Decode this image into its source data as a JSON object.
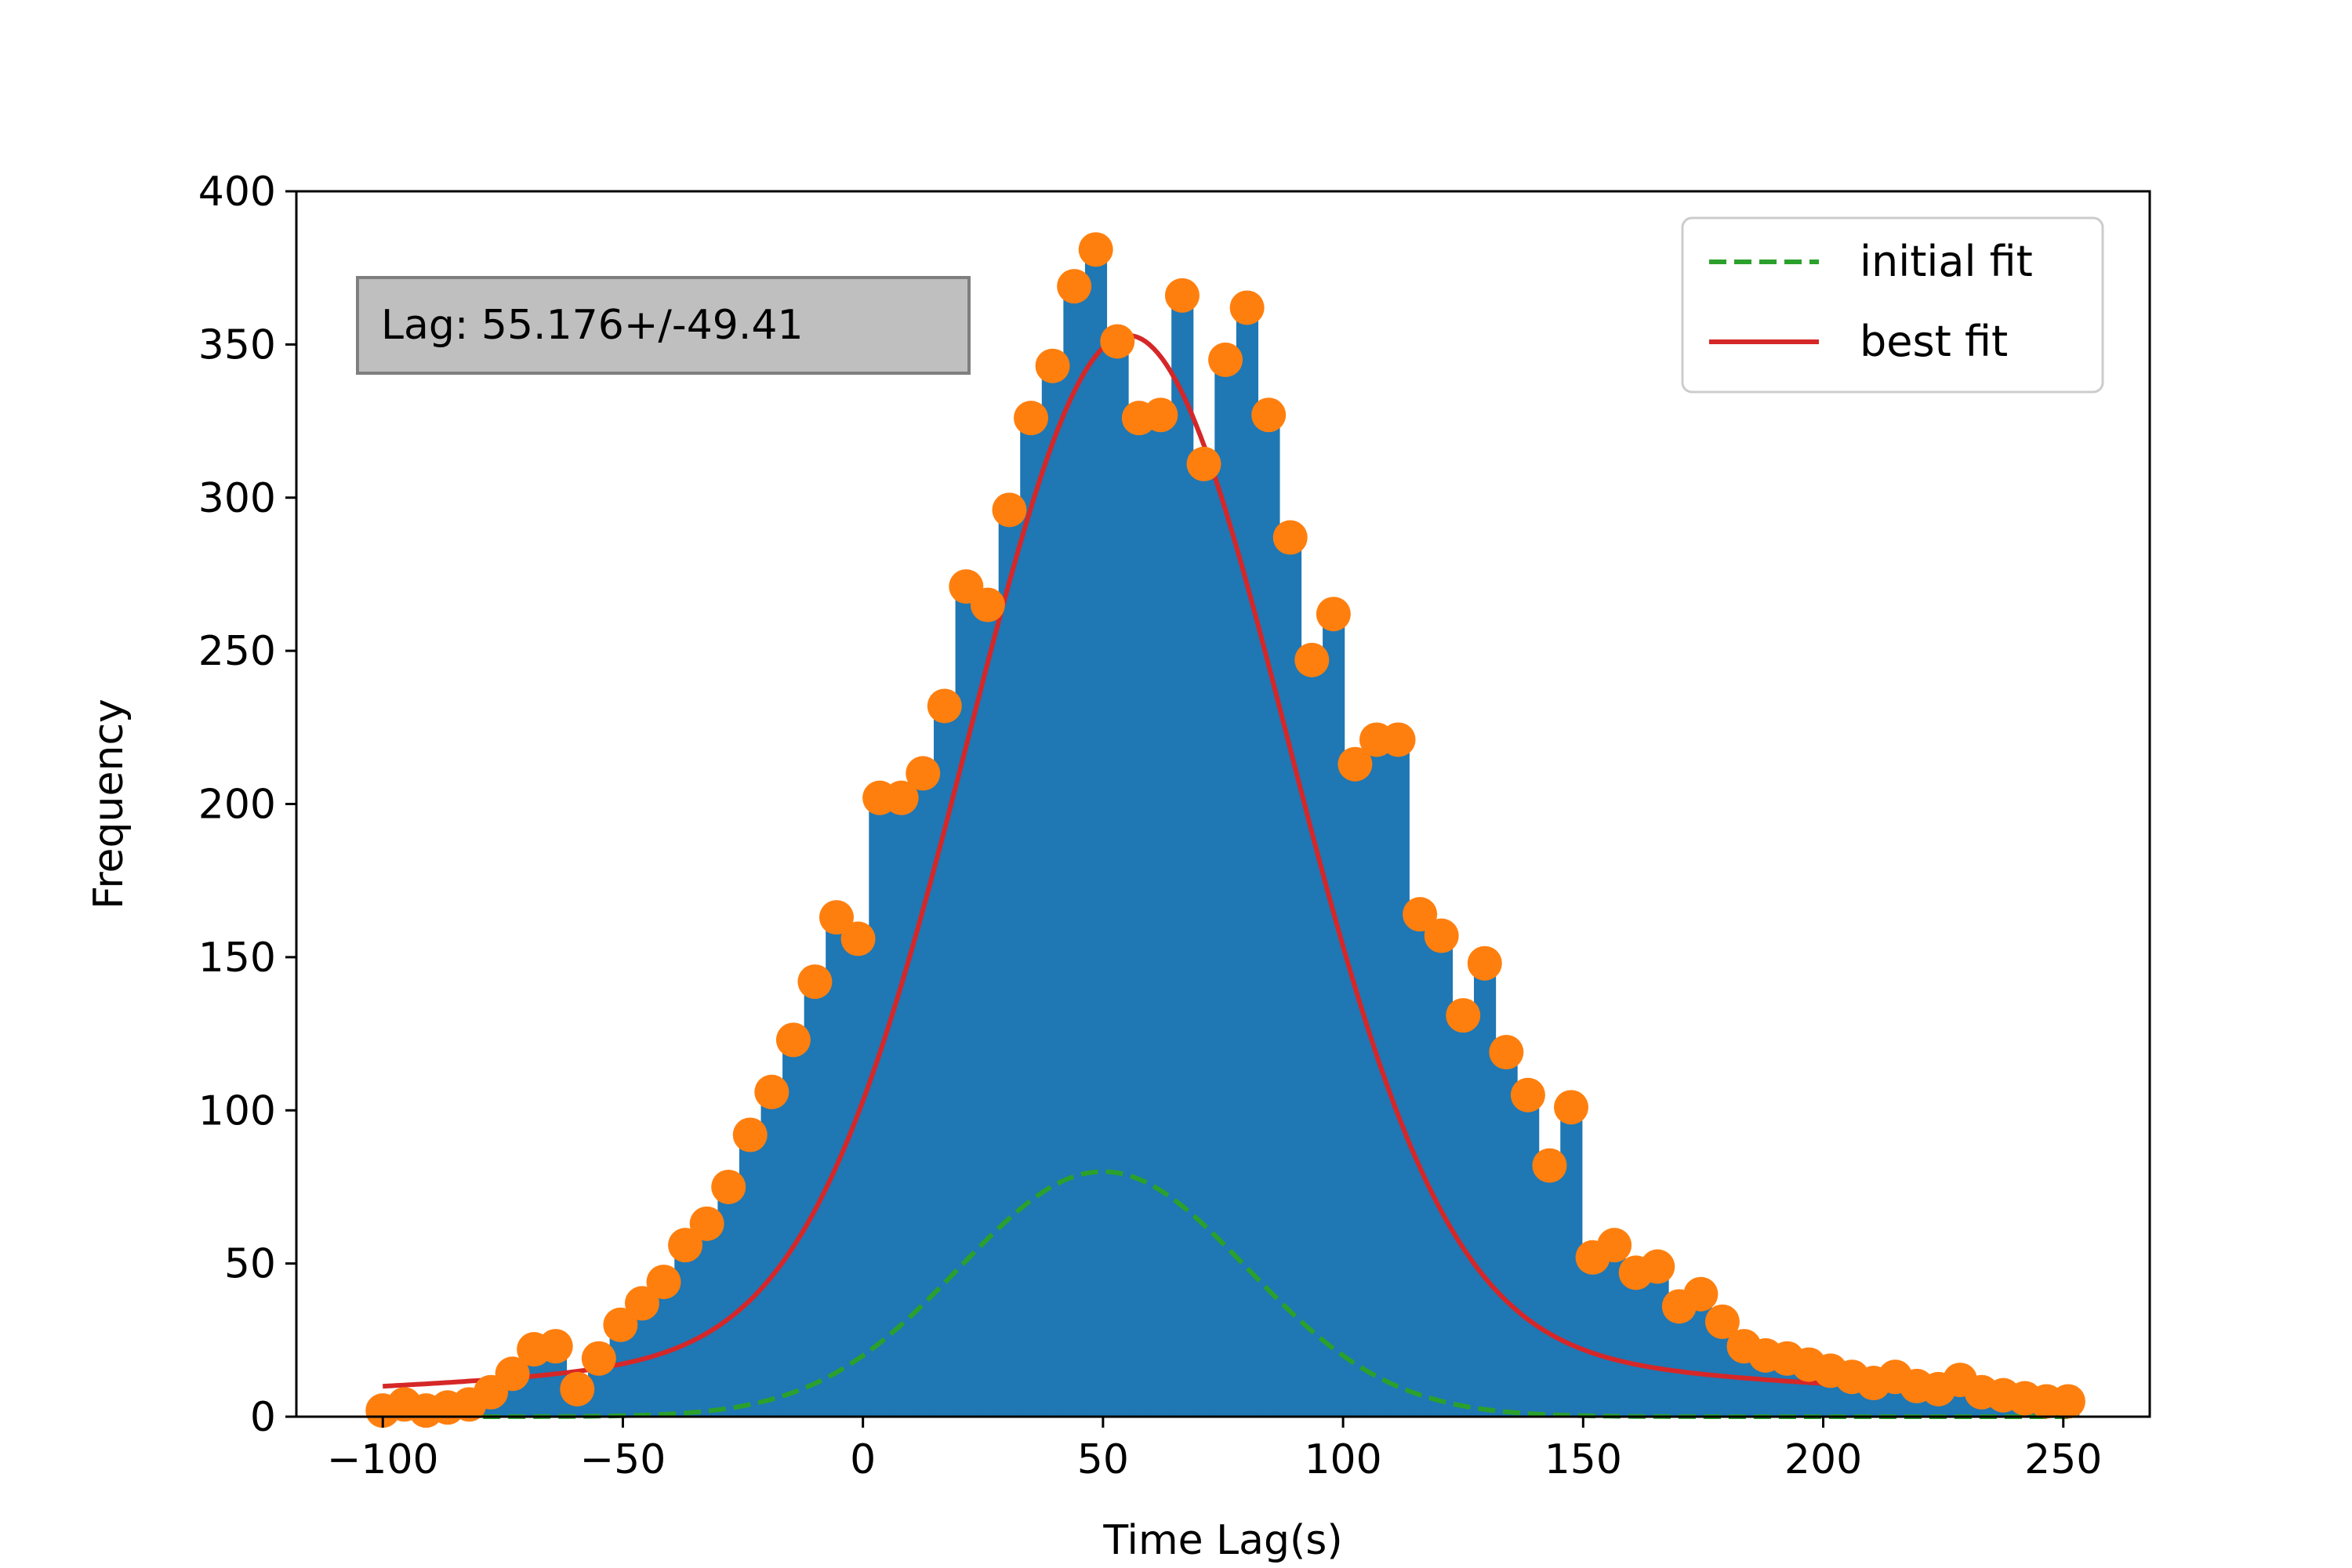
{
  "chart_data": {
    "type": "bar",
    "xlabel": "Time Lag(s)",
    "ylabel": "Frequency",
    "xlim": [
      -118,
      268
    ],
    "ylim": [
      0,
      400
    ],
    "x_ticks": [
      -100,
      -50,
      0,
      50,
      100,
      150,
      200,
      250
    ],
    "y_ticks": [
      0,
      50,
      100,
      150,
      200,
      250,
      300,
      350,
      400
    ],
    "x_tick_labels": [
      "−100",
      "−50",
      "0",
      "50",
      "100",
      "150",
      "200",
      "250"
    ],
    "y_tick_labels": [
      "0",
      "50",
      "100",
      "150",
      "200",
      "250",
      "300",
      "350",
      "400"
    ],
    "annotation": "Lag: 55.176+/-49.41",
    "legend": {
      "placement": "top-right",
      "entries": [
        "initial fit",
        "best fit"
      ]
    },
    "histogram": {
      "color": "#1f77b4",
      "x": [
        -100,
        -95.5,
        -91,
        -86.5,
        -82,
        -77.5,
        -73,
        -68.5,
        -64,
        -59.5,
        -55,
        -50.5,
        -46,
        -41.5,
        -37,
        -32.5,
        -28,
        -23.5,
        -19,
        -14.5,
        -10,
        -5.5,
        -1,
        3.5,
        8,
        12.5,
        17,
        21.5,
        26,
        30.5,
        35,
        39.5,
        44,
        48.5,
        53,
        57.5,
        62,
        66.5,
        71,
        75.5,
        80,
        84.5,
        89,
        93.5,
        98,
        102.5,
        107,
        111.5,
        116,
        120.5,
        125,
        129.5,
        134,
        138.5,
        143,
        147.5,
        152,
        156.5,
        161,
        165.5,
        170,
        174.5,
        179,
        183.5,
        188,
        192.5,
        197,
        201.5,
        206,
        210.5,
        215,
        219.5,
        224,
        228.5,
        233,
        237.5,
        242,
        246.5,
        251
      ],
      "values": [
        2,
        4,
        2,
        3,
        4,
        8,
        14,
        22,
        23,
        9,
        19,
        30,
        37,
        44,
        56,
        63,
        75,
        92,
        106,
        123,
        142,
        163,
        156,
        202,
        202,
        210,
        232,
        271,
        265,
        296,
        326,
        343,
        369,
        381,
        351,
        326,
        327,
        366,
        311,
        345,
        362,
        327,
        287,
        247,
        262,
        213,
        221,
        221,
        164,
        157,
        131,
        148,
        119,
        105,
        82,
        101,
        52,
        56,
        47,
        49,
        36,
        40,
        31,
        23,
        20,
        19,
        17,
        15,
        13,
        11,
        13,
        10,
        9,
        12,
        8,
        7,
        6,
        5,
        5
      ]
    },
    "series": [
      {
        "name": "initial fit",
        "style": "dashed",
        "color": "#2ca02c",
        "model": "gaussian",
        "amplitude": 80,
        "center": 50,
        "sigma": 30
      },
      {
        "name": "best fit",
        "style": "solid",
        "color": "#d62728",
        "model": "gaussian+lorentzian",
        "center": 55.176,
        "peak": 353
      }
    ],
    "points_color": "#ff7f0e",
    "grid": false
  }
}
